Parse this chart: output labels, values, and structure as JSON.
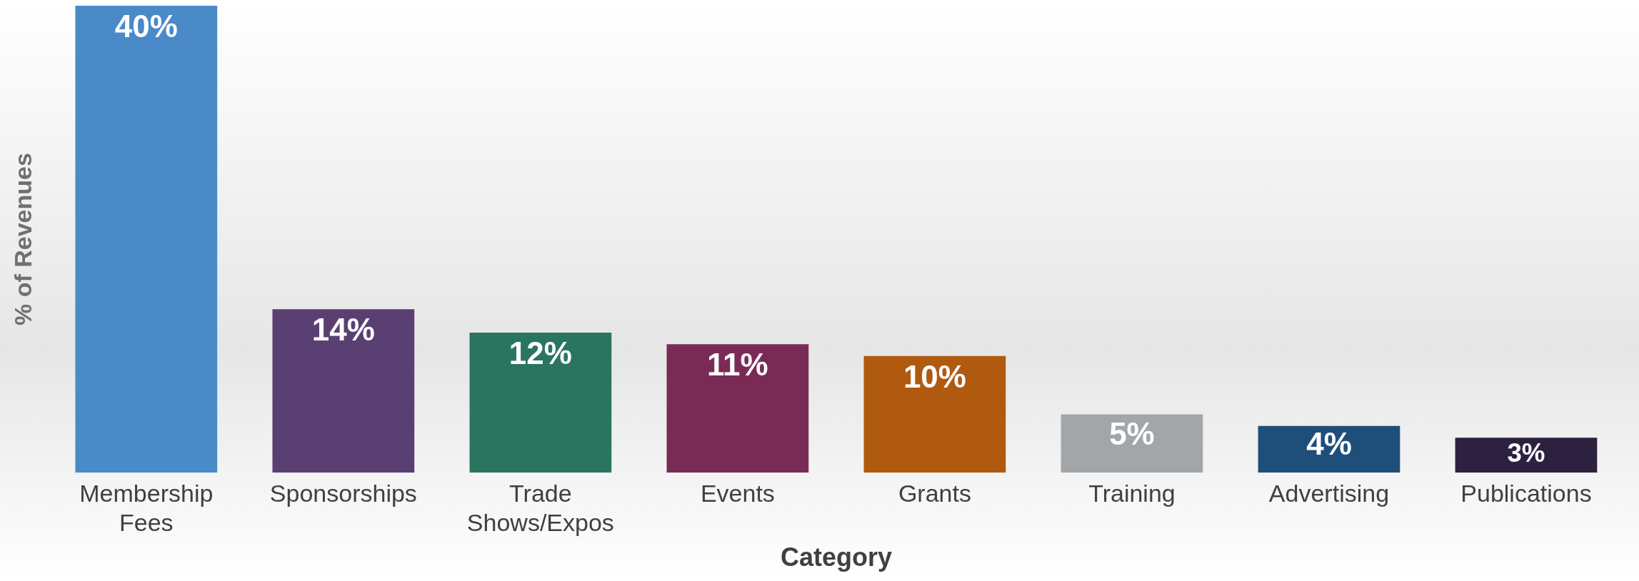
{
  "chart_data": {
    "type": "bar",
    "xlabel": "Category",
    "ylabel": "% of Revenues",
    "categories": [
      "Membership Fees",
      "Sponsorships",
      "Trade Shows/Expos",
      "Events",
      "Grants",
      "Training",
      "Advertising",
      "Publications"
    ],
    "values": [
      40,
      14,
      12,
      11,
      10,
      5,
      4,
      3
    ],
    "colors": [
      "#4a8ac8",
      "#5a3f73",
      "#2a7560",
      "#7a2b55",
      "#b05a10",
      "#a3a6a8",
      "#1e4f7a",
      "#2d2140"
    ],
    "value_labels": [
      "40%",
      "14%",
      "12%",
      "11%",
      "10%",
      "5%",
      "4%",
      "3%"
    ],
    "grid": false,
    "legend": false
  }
}
